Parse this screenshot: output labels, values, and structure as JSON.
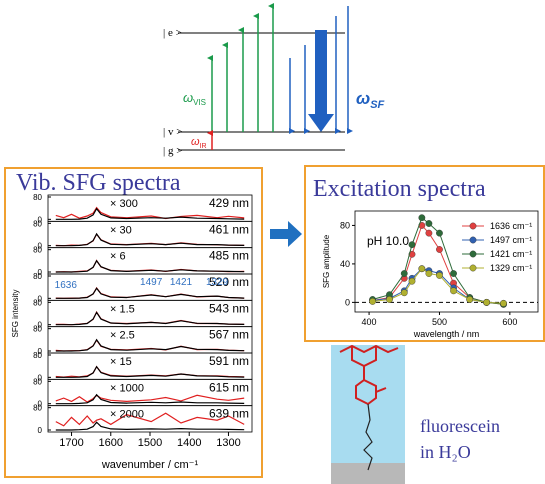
{
  "energy_diagram": {
    "levels": [
      "| e >",
      "| v >",
      "| g >"
    ],
    "visible": {
      "symbol": "ω",
      "sub": "VIS"
    },
    "infrared": {
      "symbol": "ω",
      "sub": "IR"
    },
    "sum_frequency": {
      "symbol": "ω",
      "sub": "SF"
    }
  },
  "chart_data": [
    {
      "type": "spectra",
      "title": "Vib. SFG spectra",
      "y_label": "SFG intensity",
      "x_label": "wavenumber / cm⁻¹",
      "x": [
        1740,
        1720,
        1700,
        1680,
        1660,
        1645,
        1636,
        1625,
        1600,
        1560,
        1497,
        1460,
        1421,
        1380,
        1329,
        1300,
        1260
      ],
      "xlim": [
        1760,
        1240
      ],
      "xticks": [
        1700,
        1600,
        1500,
        1400,
        1300
      ],
      "ylim": [
        0,
        80
      ],
      "yticks": [
        0,
        80
      ],
      "data_color": "#e02020",
      "fit_color": "#000000",
      "peak_label_color": "#3070c0",
      "panels": [
        {
          "name": "429 nm",
          "scale": "× 300",
          "values": [
            14,
            6,
            18,
            4,
            12,
            22,
            42,
            24,
            9,
            6,
            12,
            3,
            10,
            14,
            6,
            11,
            5
          ],
          "fit": [
            0,
            0,
            0,
            1,
            4,
            16,
            38,
            18,
            5,
            3,
            6,
            4,
            8,
            4,
            3,
            2,
            1
          ]
        },
        {
          "name": "461 nm",
          "scale": "× 30",
          "values": [
            1,
            0,
            2,
            1,
            5,
            17,
            41,
            21,
            6,
            4,
            8,
            4,
            10,
            5,
            3,
            2,
            1
          ],
          "fit": [
            0,
            0,
            0,
            1,
            4,
            18,
            42,
            20,
            5,
            3,
            7,
            4,
            9,
            4,
            4,
            2,
            1
          ]
        },
        {
          "name": "485 nm",
          "scale": "× 6",
          "values": [
            0,
            1,
            0,
            2,
            4,
            16,
            41,
            18,
            6,
            3,
            7,
            2,
            9,
            4,
            3,
            1,
            2
          ],
          "fit": [
            0,
            0,
            0,
            1,
            3,
            17,
            40,
            19,
            5,
            2,
            6,
            3,
            8,
            4,
            3,
            2,
            1
          ]
        },
        {
          "name": "520 nm",
          "values": [
            1,
            0,
            1,
            1,
            4,
            15,
            37,
            17,
            5,
            3,
            13,
            6,
            15,
            5,
            8,
            3,
            1
          ],
          "fit": [
            0,
            0,
            0,
            1,
            3,
            16,
            36,
            16,
            4,
            3,
            12,
            6,
            14,
            6,
            8,
            3,
            1
          ],
          "peak_labels": [
            1636,
            1497,
            1421,
            1329
          ]
        },
        {
          "name": "543 nm",
          "scale": "× 1.5",
          "values": [
            1,
            1,
            0,
            2,
            5,
            19,
            45,
            21,
            6,
            4,
            8,
            5,
            15,
            4,
            4,
            2,
            1
          ],
          "fit": [
            0,
            0,
            0,
            1,
            4,
            20,
            44,
            20,
            6,
            3,
            8,
            4,
            14,
            5,
            4,
            2,
            1
          ]
        },
        {
          "name": "567 nm",
          "scale": "× 2.5",
          "values": [
            2,
            0,
            1,
            1,
            5,
            19,
            39,
            17,
            6,
            4,
            9,
            4,
            17,
            5,
            6,
            3,
            1
          ],
          "fit": [
            0,
            0,
            0,
            1,
            4,
            18,
            40,
            18,
            5,
            3,
            8,
            5,
            16,
            6,
            5,
            2,
            1
          ]
        },
        {
          "name": "591 nm",
          "scale": "× 15",
          "values": [
            3,
            1,
            4,
            2,
            5,
            15,
            38,
            18,
            7,
            4,
            8,
            5,
            12,
            6,
            5,
            3,
            2
          ],
          "fit": [
            0,
            0,
            0,
            1,
            3,
            16,
            38,
            17,
            5,
            3,
            7,
            4,
            12,
            5,
            4,
            2,
            1
          ]
        },
        {
          "name": "615 nm",
          "scale": "× 1000",
          "values": [
            10,
            20,
            8,
            25,
            6,
            18,
            30,
            20,
            12,
            8,
            14,
            22,
            10,
            30,
            16,
            12,
            20
          ],
          "fit": [
            0,
            0,
            0,
            1,
            3,
            14,
            32,
            15,
            4,
            2,
            5,
            3,
            6,
            3,
            3,
            2,
            1
          ]
        },
        {
          "name": "639 nm",
          "scale": "× 2000",
          "values": [
            30,
            15,
            45,
            20,
            50,
            25,
            35,
            40,
            20,
            55,
            30,
            60,
            25,
            45,
            35,
            50,
            20
          ],
          "fit": [
            0,
            0,
            0,
            1,
            3,
            12,
            28,
            13,
            4,
            2,
            4,
            3,
            5,
            3,
            3,
            2,
            1
          ]
        }
      ]
    },
    {
      "type": "line",
      "title": "Excitation spectra",
      "annotation": "pH 10.0",
      "y_label": "SFG amplitude",
      "x_label": "wavelength / nm",
      "x": [
        405,
        429,
        450,
        461,
        475,
        485,
        500,
        520,
        543,
        567,
        591
      ],
      "xlim": [
        380,
        640
      ],
      "xticks": [
        400,
        500,
        600
      ],
      "ylim": [
        -10,
        95
      ],
      "yticks": [
        0,
        40,
        80
      ],
      "zero_line": true,
      "series": [
        {
          "name": "1636 cm⁻¹",
          "color": "#e04040",
          "values": [
            2,
            5,
            25,
            50,
            80,
            72,
            55,
            20,
            5,
            0,
            -2
          ]
        },
        {
          "name": "1497 cm⁻¹",
          "color": "#3060b0",
          "values": [
            2,
            4,
            12,
            25,
            35,
            33,
            30,
            15,
            3,
            0,
            -1
          ]
        },
        {
          "name": "1421 cm⁻¹",
          "color": "#2e6b3a",
          "values": [
            3,
            8,
            30,
            60,
            88,
            82,
            72,
            30,
            5,
            0,
            -2
          ]
        },
        {
          "name": "1329 cm⁻¹",
          "color": "#b0b030",
          "values": [
            1,
            3,
            10,
            22,
            35,
            30,
            28,
            12,
            3,
            0,
            -1
          ]
        }
      ]
    }
  ],
  "molecule_caption": [
    "fluorescein",
    "in H₂O"
  ]
}
